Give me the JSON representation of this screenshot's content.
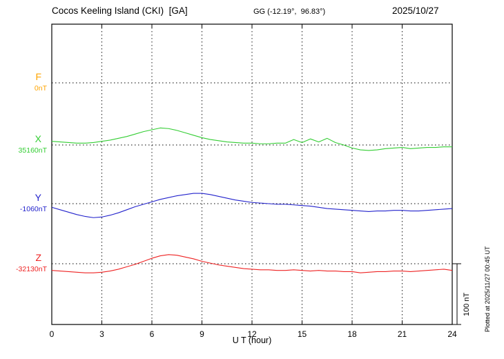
{
  "header": {
    "title": "Cocos Keeling Island (CKI)  [GA]",
    "gg_coords": "GG (-12.19°,  96.83°)",
    "date": "2025/10/27"
  },
  "footer": {
    "xlabel": "U T (hour)",
    "plotted_at": "Plotted at 2025/11/27 00:45 UT"
  },
  "scale_bar": {
    "label": "100 nT",
    "nT": 100
  },
  "chart_data": {
    "type": "line",
    "title": "Cocos Keeling Island (CKI) [GA] magnetogram, 2025/10/27",
    "xlabel": "U T (hour)",
    "x_range": [
      0,
      24
    ],
    "x_ticks": [
      0,
      3,
      6,
      9,
      12,
      15,
      18,
      21,
      24
    ],
    "grid": "dotted vertical gridlines every 3 h; dotted horizontal baseline per component",
    "legend_position": "left margin component labels",
    "scale_bar_nT": 100,
    "x": [
      0,
      0.5,
      1,
      1.5,
      2,
      2.5,
      3,
      3.5,
      4,
      4.5,
      5,
      5.5,
      6,
      6.5,
      7,
      7.5,
      8,
      8.5,
      9,
      9.5,
      10,
      10.5,
      11,
      11.5,
      12,
      12.5,
      13,
      13.5,
      14,
      14.5,
      15,
      15.5,
      16,
      16.5,
      17,
      17.5,
      18,
      18.5,
      19,
      19.5,
      20,
      20.5,
      21,
      21.5,
      22,
      22.5,
      23,
      23.5,
      24
    ],
    "series": [
      {
        "name": "F",
        "baseline_label": "0nT",
        "baseline_value": 0,
        "color": "#ffa500",
        "plotted": false,
        "values": [
          0,
          0,
          0,
          0,
          0,
          0,
          0,
          0,
          0,
          0,
          0,
          0,
          0,
          0,
          0,
          0,
          0,
          0,
          0,
          0,
          0,
          0,
          0,
          0,
          0,
          0,
          0,
          0,
          0,
          0,
          0,
          0,
          0,
          0,
          0,
          0,
          0,
          0,
          0,
          0,
          0,
          0,
          0,
          0,
          0,
          0,
          0,
          0,
          0
        ]
      },
      {
        "name": "X",
        "baseline_label": "35160nT",
        "baseline_value": 35160,
        "color": "#32cd32",
        "plotted": true,
        "values": [
          35166,
          35165,
          35164,
          35163,
          35163,
          35164,
          35166,
          35168,
          35171,
          35174,
          35178,
          35182,
          35185,
          35188,
          35187,
          35184,
          35180,
          35176,
          35172,
          35169,
          35167,
          35165,
          35164,
          35163,
          35163,
          35162,
          35162,
          35163,
          35163,
          35169,
          35164,
          35170,
          35165,
          35171,
          35164,
          35160,
          35155,
          35152,
          35151,
          35152,
          35154,
          35155,
          35156,
          35154,
          35155,
          35156,
          35156,
          35157,
          35157
        ]
      },
      {
        "name": "Y",
        "baseline_label": "-1060nT",
        "baseline_value": -1060,
        "color": "#2222cc",
        "plotted": true,
        "values": [
          -1066,
          -1070,
          -1074,
          -1078,
          -1081,
          -1083,
          -1082,
          -1079,
          -1075,
          -1070,
          -1065,
          -1061,
          -1057,
          -1053,
          -1050,
          -1047,
          -1045,
          -1043,
          -1043,
          -1045,
          -1048,
          -1051,
          -1054,
          -1056,
          -1058,
          -1059,
          -1060,
          -1061,
          -1061,
          -1062,
          -1063,
          -1064,
          -1066,
          -1068,
          -1069,
          -1070,
          -1071,
          -1072,
          -1073,
          -1072,
          -1072,
          -1071,
          -1071,
          -1072,
          -1072,
          -1071,
          -1070,
          -1069,
          -1068
        ]
      },
      {
        "name": "Z",
        "baseline_label": "-32130nT",
        "baseline_value": -32130,
        "color": "#ee2222",
        "plotted": true,
        "values": [
          -32141,
          -32142,
          -32143,
          -32144,
          -32145,
          -32145,
          -32144,
          -32142,
          -32139,
          -32135,
          -32131,
          -32126,
          -32121,
          -32117,
          -32115,
          -32116,
          -32119,
          -32122,
          -32126,
          -32129,
          -32132,
          -32134,
          -32136,
          -32138,
          -32139,
          -32140,
          -32140,
          -32141,
          -32141,
          -32140,
          -32141,
          -32142,
          -32141,
          -32142,
          -32142,
          -32143,
          -32143,
          -32145,
          -32144,
          -32143,
          -32143,
          -32142,
          -32142,
          -32143,
          -32142,
          -32141,
          -32140,
          -32139,
          -32141
        ]
      }
    ]
  }
}
